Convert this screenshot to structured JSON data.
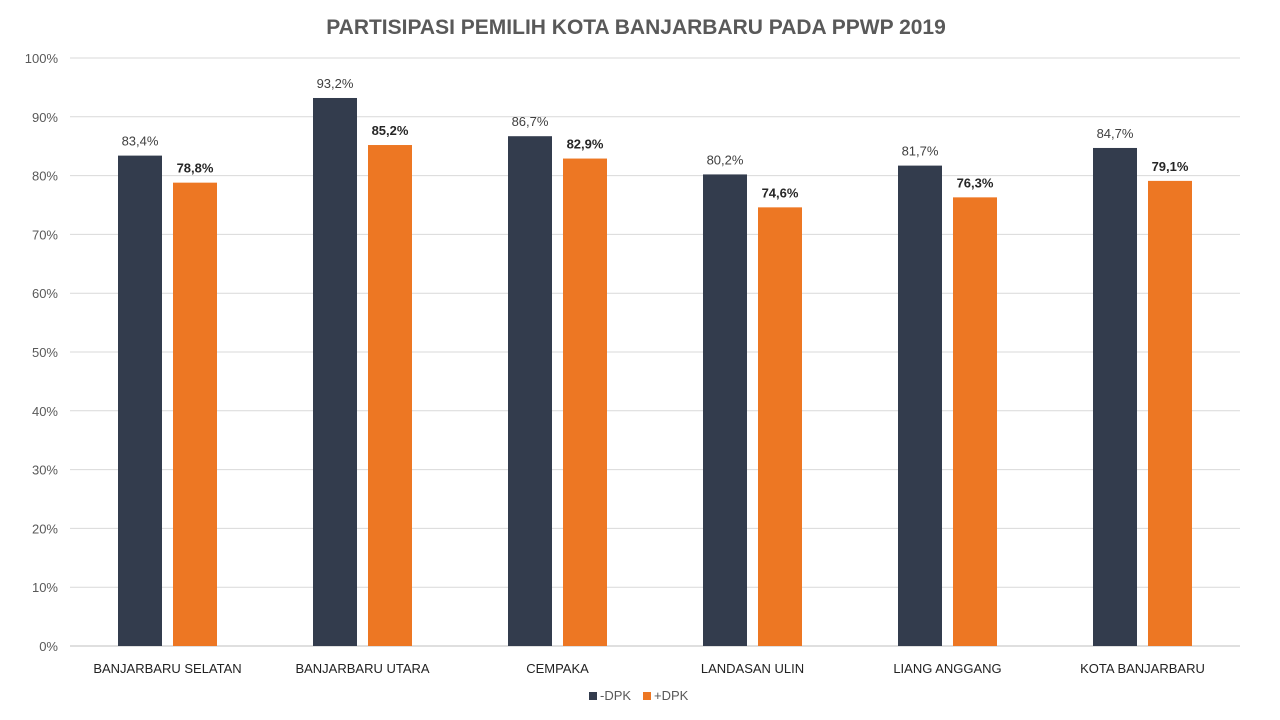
{
  "chart_data": {
    "type": "bar",
    "title": "PARTISIPASI PEMILIH KOTA BANJARBARU PADA PPWP 2019",
    "categories": [
      "BANJARBARU SELATAN",
      "BANJARBARU UTARA",
      "CEMPAKA",
      "LANDASAN ULIN",
      "LIANG ANGGANG",
      "KOTA BANJARBARU"
    ],
    "series": [
      {
        "name": "-DPK",
        "color": "#333c4d",
        "values": [
          83.4,
          93.2,
          86.7,
          80.2,
          81.7,
          84.7
        ],
        "labels": [
          "83,4%",
          "93,2%",
          "86,7%",
          "80,2%",
          "81,7%",
          "84,7%"
        ]
      },
      {
        "name": "+DPK",
        "color": "#ed7723",
        "values": [
          78.8,
          85.2,
          82.9,
          74.6,
          76.3,
          79.1
        ],
        "labels": [
          "78,8%",
          "85,2%",
          "82,9%",
          "74,6%",
          "76,3%",
          "79,1%"
        ]
      }
    ],
    "yticks": [
      "0%",
      "10%",
      "20%",
      "30%",
      "40%",
      "50%",
      "60%",
      "70%",
      "80%",
      "90%",
      "100%"
    ],
    "ylim": [
      0,
      100
    ],
    "xlabel": "",
    "ylabel": "",
    "grid": true,
    "legend_position": "bottom-center"
  }
}
